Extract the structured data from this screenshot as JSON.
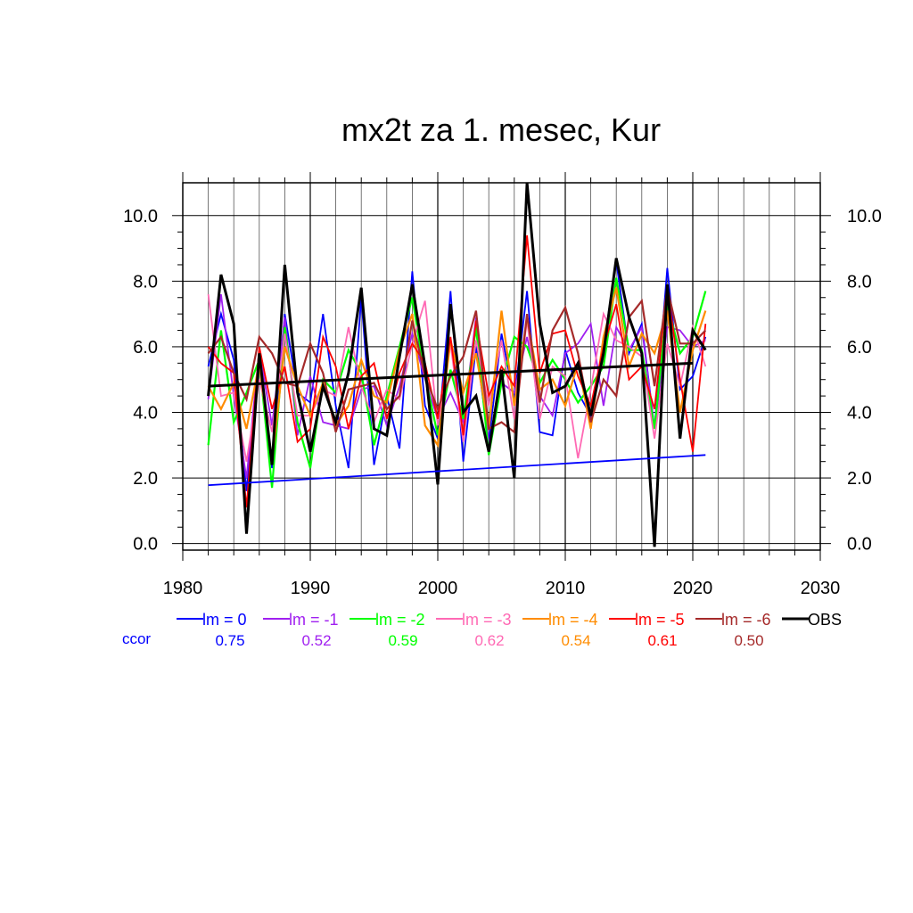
{
  "chart_data": {
    "type": "line",
    "title": "mx2t za 1. mesec, Kur",
    "xlabel": "",
    "ylabel": "",
    "xlim": [
      1980,
      2030
    ],
    "ylim": [
      -0.2,
      11.0
    ],
    "xticks": [
      1980,
      1990,
      2000,
      2010,
      2020,
      2030
    ],
    "xtick_labels": [
      "1980",
      "1990",
      "2000",
      "2010",
      "2020",
      "2030"
    ],
    "yticks": [
      0,
      2,
      4,
      6,
      8,
      10
    ],
    "ytick_labels": [
      "0.0",
      "2.0",
      "4.0",
      "6.0",
      "8.0",
      "10.0"
    ],
    "grid": true,
    "x": [
      1982,
      1983,
      1984,
      1985,
      1986,
      1987,
      1988,
      1989,
      1990,
      1991,
      1992,
      1993,
      1994,
      1995,
      1996,
      1997,
      1998,
      1999,
      2000,
      2001,
      2002,
      2003,
      2004,
      2005,
      2006,
      2007,
      2008,
      2009,
      2010,
      2011,
      2012,
      2013,
      2014,
      2015,
      2016,
      2017,
      2018,
      2019,
      2020,
      2021
    ],
    "series": [
      {
        "name": "lm = 0",
        "color": "#0000ff",
        "width": 1.8,
        "values": [
          5.4,
          7.0,
          5.6,
          1.6,
          5.8,
          2.3,
          7.0,
          4.6,
          4.3,
          7.0,
          4.2,
          2.3,
          7.5,
          2.4,
          4.5,
          2.9,
          8.3,
          4.2,
          3.2,
          7.7,
          2.5,
          6.0,
          3.1,
          6.4,
          4.4,
          7.7,
          3.4,
          3.3,
          5.9,
          4.6,
          3.9,
          6.0,
          8.6,
          5.8,
          6.7,
          3.5,
          8.4,
          4.7,
          5.1,
          6.3
        ]
      },
      {
        "name": "lm = -1",
        "color": "#a020f0",
        "width": 1.8,
        "values": [
          4.4,
          7.6,
          4.5,
          2.0,
          5.9,
          3.6,
          6.9,
          3.3,
          5.1,
          3.7,
          3.6,
          3.5,
          4.7,
          4.8,
          3.6,
          4.8,
          6.4,
          5.0,
          3.8,
          4.6,
          3.7,
          6.9,
          3.0,
          4.9,
          4.6,
          6.3,
          4.5,
          3.9,
          5.8,
          6.1,
          6.7,
          4.2,
          6.6,
          5.9,
          6.6,
          3.5,
          6.6,
          6.5,
          6.0,
          6.2
        ]
      },
      {
        "name": "lm = -2",
        "color": "#00ff00",
        "width": 2.2,
        "values": [
          3.0,
          6.5,
          3.7,
          4.6,
          5.6,
          1.7,
          6.6,
          3.7,
          2.3,
          5.0,
          4.6,
          5.9,
          5.2,
          3.0,
          4.5,
          6.0,
          7.5,
          5.1,
          3.3,
          5.3,
          3.8,
          6.6,
          2.7,
          4.9,
          6.3,
          6.0,
          4.9,
          5.6,
          5.0,
          4.3,
          4.8,
          5.4,
          8.1,
          5.9,
          5.9,
          3.5,
          7.3,
          5.8,
          6.3,
          7.7
        ]
      },
      {
        "name": "lm = -3",
        "color": "#ff69b4",
        "width": 1.8,
        "values": [
          7.6,
          4.5,
          4.6,
          2.5,
          5.0,
          3.4,
          6.4,
          3.9,
          3.9,
          4.7,
          4.5,
          6.6,
          4.8,
          3.7,
          4.7,
          4.4,
          6.1,
          7.4,
          3.6,
          6.1,
          3.1,
          6.2,
          4.2,
          6.2,
          3.8,
          6.8,
          3.8,
          5.4,
          5.1,
          2.6,
          4.7,
          7.0,
          6.2,
          6.0,
          5.7,
          3.2,
          6.1,
          4.8,
          6.6,
          5.4
        ]
      },
      {
        "name": "lm = -4",
        "color": "#ff8c00",
        "width": 2.2,
        "values": [
          4.8,
          4.1,
          4.9,
          3.5,
          5.5,
          2.5,
          6.0,
          4.8,
          3.9,
          4.9,
          3.6,
          4.2,
          5.6,
          4.5,
          4.3,
          5.9,
          7.0,
          3.6,
          3.0,
          6.2,
          4.6,
          5.8,
          3.5,
          7.1,
          4.2,
          6.9,
          4.7,
          5.0,
          4.2,
          5.5,
          3.5,
          6.3,
          7.8,
          5.4,
          6.4,
          5.8,
          7.1,
          4.0,
          5.9,
          7.1
        ]
      },
      {
        "name": "lm = -5",
        "color": "#ff0000",
        "width": 1.8,
        "values": [
          6.0,
          5.5,
          5.2,
          1.1,
          6.0,
          4.1,
          5.4,
          3.1,
          3.5,
          6.3,
          5.4,
          3.5,
          5.1,
          5.5,
          3.8,
          5.2,
          6.1,
          5.5,
          3.8,
          6.3,
          3.3,
          6.8,
          4.5,
          5.4,
          4.8,
          9.4,
          5.2,
          6.4,
          6.5,
          5.1,
          4.2,
          6.0,
          7.3,
          5.0,
          5.4,
          4.1,
          7.8,
          5.0,
          2.8,
          6.7
        ]
      },
      {
        "name": "lm = -6",
        "color": "#a52a2a",
        "width": 2.2,
        "values": [
          5.8,
          6.3,
          5.2,
          4.4,
          6.3,
          5.8,
          4.9,
          4.8,
          6.1,
          5.2,
          3.4,
          4.7,
          4.8,
          4.9,
          4.1,
          4.5,
          6.8,
          5.1,
          4.1,
          5.1,
          5.7,
          7.1,
          3.5,
          3.7,
          3.4,
          7.0,
          4.3,
          6.5,
          7.2,
          5.8,
          3.7,
          5.0,
          4.5,
          6.9,
          7.4,
          4.8,
          7.8,
          6.1,
          6.1,
          6.5
        ]
      },
      {
        "name": "OBS",
        "color": "#000000",
        "width": 3.0,
        "values": [
          4.5,
          8.2,
          6.7,
          0.3,
          5.8,
          2.4,
          8.5,
          4.6,
          2.8,
          4.8,
          3.7,
          5.2,
          7.8,
          3.5,
          3.3,
          5.7,
          7.9,
          5.4,
          1.8,
          7.3,
          4.0,
          4.5,
          2.8,
          5.3,
          2.0,
          11.0,
          6.7,
          4.6,
          4.8,
          5.5,
          3.9,
          5.8,
          8.7,
          6.9,
          5.8,
          -0.1,
          7.9,
          3.2,
          6.5,
          5.9
        ]
      }
    ],
    "trends": [
      {
        "name": "OBS trend",
        "color": "#000000",
        "width": 3.0,
        "x": [
          1982,
          2020
        ],
        "values": [
          4.8,
          5.5
        ]
      },
      {
        "name": "lm = 0 trend",
        "color": "#0000ff",
        "width": 1.8,
        "x": [
          1982,
          2021
        ],
        "values": [
          1.78,
          2.7
        ]
      }
    ],
    "legend": {
      "placement": "bottom",
      "label": "ccor",
      "label_color": "#0000ff",
      "entries": [
        {
          "name": "lm = 0",
          "color": "#0000ff",
          "ccor": "0.75"
        },
        {
          "name": "lm = -1",
          "color": "#a020f0",
          "ccor": "0.52"
        },
        {
          "name": "lm = -2",
          "color": "#00ff00",
          "ccor": "0.59"
        },
        {
          "name": "lm = -3",
          "color": "#ff69b4",
          "ccor": "0.62"
        },
        {
          "name": "lm = -4",
          "color": "#ff8c00",
          "ccor": "0.54"
        },
        {
          "name": "lm = -5",
          "color": "#ff0000",
          "ccor": "0.61"
        },
        {
          "name": "lm = -6",
          "color": "#a52a2a",
          "ccor": "0.50"
        },
        {
          "name": "OBS",
          "color": "#000000",
          "ccor": ""
        }
      ]
    }
  }
}
